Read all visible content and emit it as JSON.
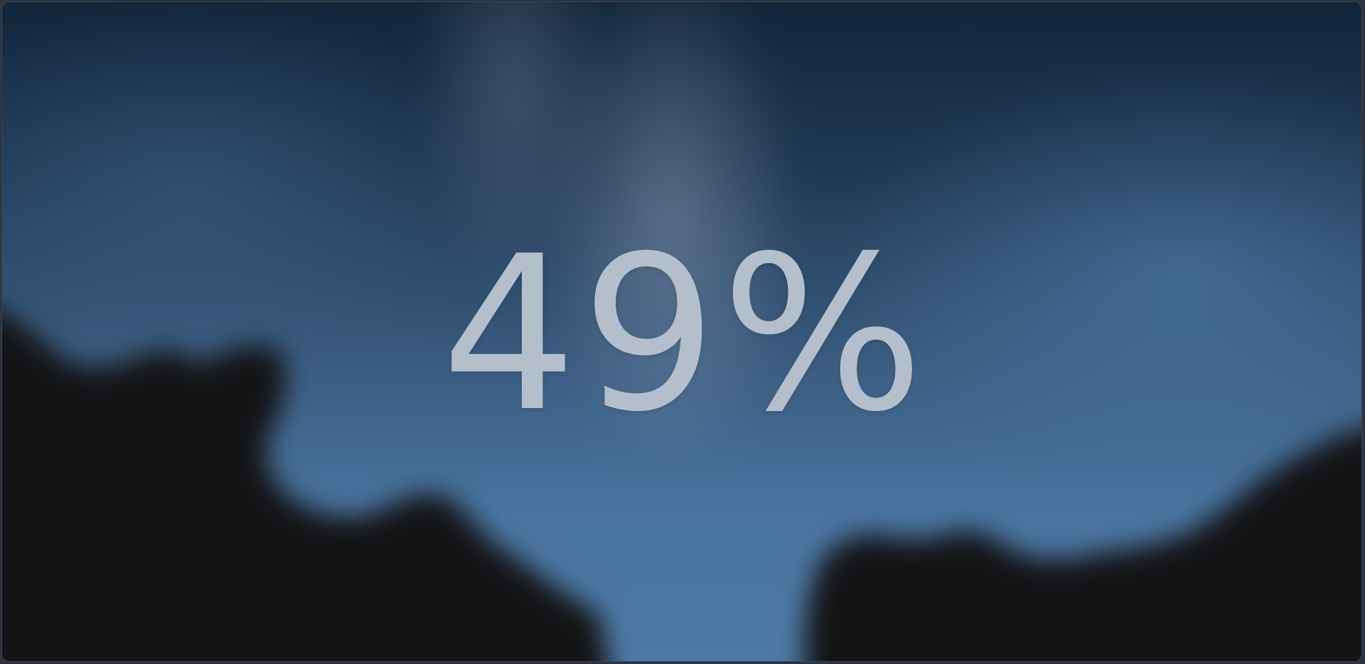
{
  "lock_screen": {
    "battery_percent_text": "49%",
    "battery_level_fraction": 0.49
  },
  "wallpaper": {
    "description_icon": "night-sky-milky-way",
    "colors": {
      "sky_top": "#0f2238",
      "sky_bottom": "#4f7aa5",
      "silhouette": "#141416",
      "text": "#b5bfcc"
    }
  }
}
